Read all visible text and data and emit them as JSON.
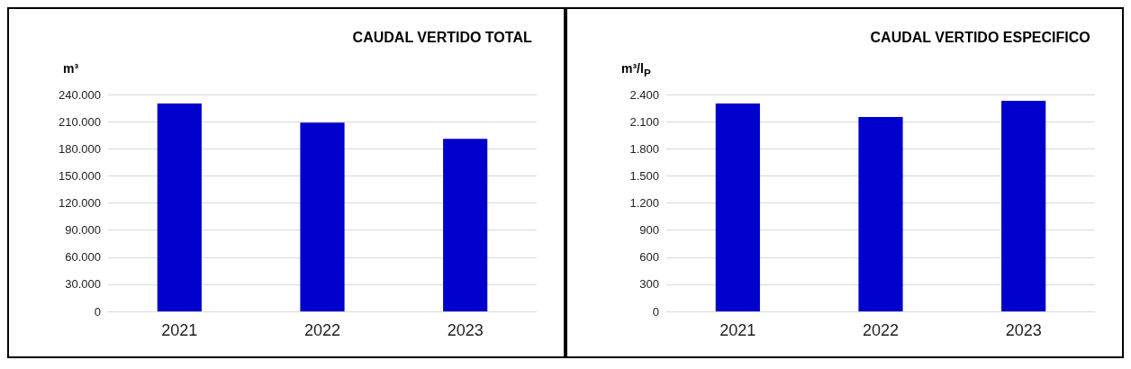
{
  "chart_data": [
    {
      "type": "bar",
      "title": "CAUDAL VERTIDO TOTAL",
      "ylabel": "m³",
      "categories": [
        "2021",
        "2022",
        "2023"
      ],
      "values": [
        230000,
        209000,
        191000
      ],
      "color": "#0000cc",
      "ylim": [
        0,
        240000
      ],
      "yticks": [
        {
          "value": 0,
          "label": "0"
        },
        {
          "value": 30000,
          "label": "30.000"
        },
        {
          "value": 60000,
          "label": "60.000"
        },
        {
          "value": 90000,
          "label": "90.000"
        },
        {
          "value": 120000,
          "label": "120.000"
        },
        {
          "value": 150000,
          "label": "150.000"
        },
        {
          "value": 180000,
          "label": "180.000"
        },
        {
          "value": 210000,
          "label": "210.000"
        },
        {
          "value": 240000,
          "label": "240.000"
        }
      ],
      "grid": "y"
    },
    {
      "type": "bar",
      "title": "CAUDAL VERTIDO ESPECIFICO",
      "ylabel": "m³/l$_{P}$",
      "categories": [
        "2021",
        "2022",
        "2023"
      ],
      "values": [
        2300,
        2150,
        2330
      ],
      "color": "#0000cc",
      "ylim": [
        0,
        2400
      ],
      "yticks": [
        {
          "value": 0,
          "label": "0"
        },
        {
          "value": 300,
          "label": "300"
        },
        {
          "value": 600,
          "label": "600"
        },
        {
          "value": 900,
          "label": "900"
        },
        {
          "value": 1200,
          "label": "1.200"
        },
        {
          "value": 1500,
          "label": "1.500"
        },
        {
          "value": 1800,
          "label": "1.800"
        },
        {
          "value": 2100,
          "label": "2.100"
        },
        {
          "value": 2400,
          "label": "2.400"
        }
      ],
      "grid": "y"
    }
  ]
}
